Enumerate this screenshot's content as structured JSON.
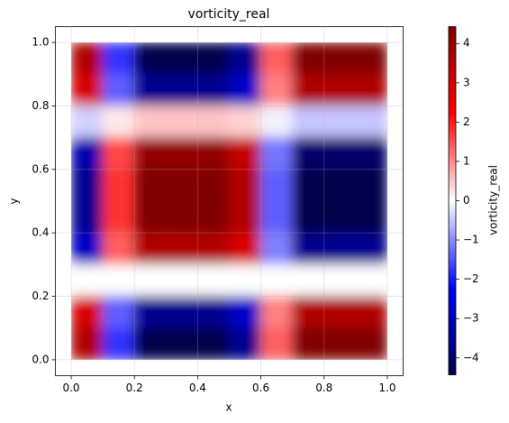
{
  "chart_data": {
    "type": "heatmap",
    "title": "vorticity_real",
    "x_label": "x",
    "y_label": "y",
    "colorbar_label": "vorticity_real",
    "colormap": "seismic",
    "grid": true,
    "x": [
      0.05,
      0.15,
      0.25,
      0.35,
      0.45,
      0.55,
      0.65,
      0.75,
      0.85,
      0.95
    ],
    "y": [
      0.95,
      0.85,
      0.75,
      0.65,
      0.55,
      0.45,
      0.35,
      0.25,
      0.15,
      0.05
    ],
    "values": [
      [
        3.6,
        -1.8,
        -4.5,
        -4.5,
        -4.5,
        -3.6,
        1.4,
        4.5,
        4.5,
        4.5
      ],
      [
        2.9,
        -1.4,
        -3.6,
        -3.6,
        -3.6,
        -2.9,
        1.1,
        3.6,
        3.6,
        3.6
      ],
      [
        -0.4,
        0.2,
        0.5,
        0.5,
        0.5,
        0.4,
        -0.1,
        -0.5,
        -0.5,
        -0.5
      ],
      [
        -3.2,
        1.6,
        4.1,
        4.1,
        4.1,
        3.2,
        -1.2,
        -4.1,
        -4.1,
        -4.1
      ],
      [
        -3.6,
        1.8,
        4.5,
        4.5,
        4.5,
        3.6,
        -1.4,
        -4.5,
        -4.5,
        -4.5
      ],
      [
        -3.6,
        1.8,
        4.5,
        4.5,
        4.5,
        3.6,
        -1.4,
        -4.5,
        -4.5,
        -4.5
      ],
      [
        -2.9,
        1.4,
        3.6,
        3.6,
        3.6,
        2.9,
        -1.1,
        -3.6,
        -3.6,
        -3.6
      ],
      [
        0,
        0,
        0,
        0,
        0,
        0,
        0,
        0,
        0,
        0
      ],
      [
        2.9,
        -1.4,
        -3.6,
        -3.6,
        -3.6,
        -2.9,
        1.1,
        3.6,
        3.6,
        3.6
      ],
      [
        3.6,
        -1.8,
        -4.5,
        -4.5,
        -4.5,
        -3.6,
        1.4,
        4.5,
        4.5,
        4.5
      ]
    ],
    "xlim": [
      -0.05,
      1.05
    ],
    "ylim": [
      -0.05,
      1.05
    ],
    "xticks": [
      {
        "value": 0,
        "label": "0.0"
      },
      {
        "value": 0.2,
        "label": "0.2"
      },
      {
        "value": 0.4,
        "label": "0.4"
      },
      {
        "value": 0.6,
        "label": "0.6"
      },
      {
        "value": 0.8,
        "label": "0.8"
      },
      {
        "value": 1,
        "label": "1.0"
      }
    ],
    "yticks": [
      {
        "value": 0,
        "label": "0.0"
      },
      {
        "value": 0.2,
        "label": "0.2"
      },
      {
        "value": 0.4,
        "label": "0.4"
      },
      {
        "value": 0.6,
        "label": "0.6"
      },
      {
        "value": 0.8,
        "label": "0.8"
      },
      {
        "value": 1,
        "label": "1.0"
      }
    ],
    "clim": [
      -4.43,
      4.43
    ],
    "colorbar_ticks": [
      {
        "value": -4,
        "label": "−4"
      },
      {
        "value": -3,
        "label": "−3"
      },
      {
        "value": -2,
        "label": "−2"
      },
      {
        "value": -1,
        "label": "−1"
      },
      0,
      1,
      2,
      3,
      4
    ]
  }
}
